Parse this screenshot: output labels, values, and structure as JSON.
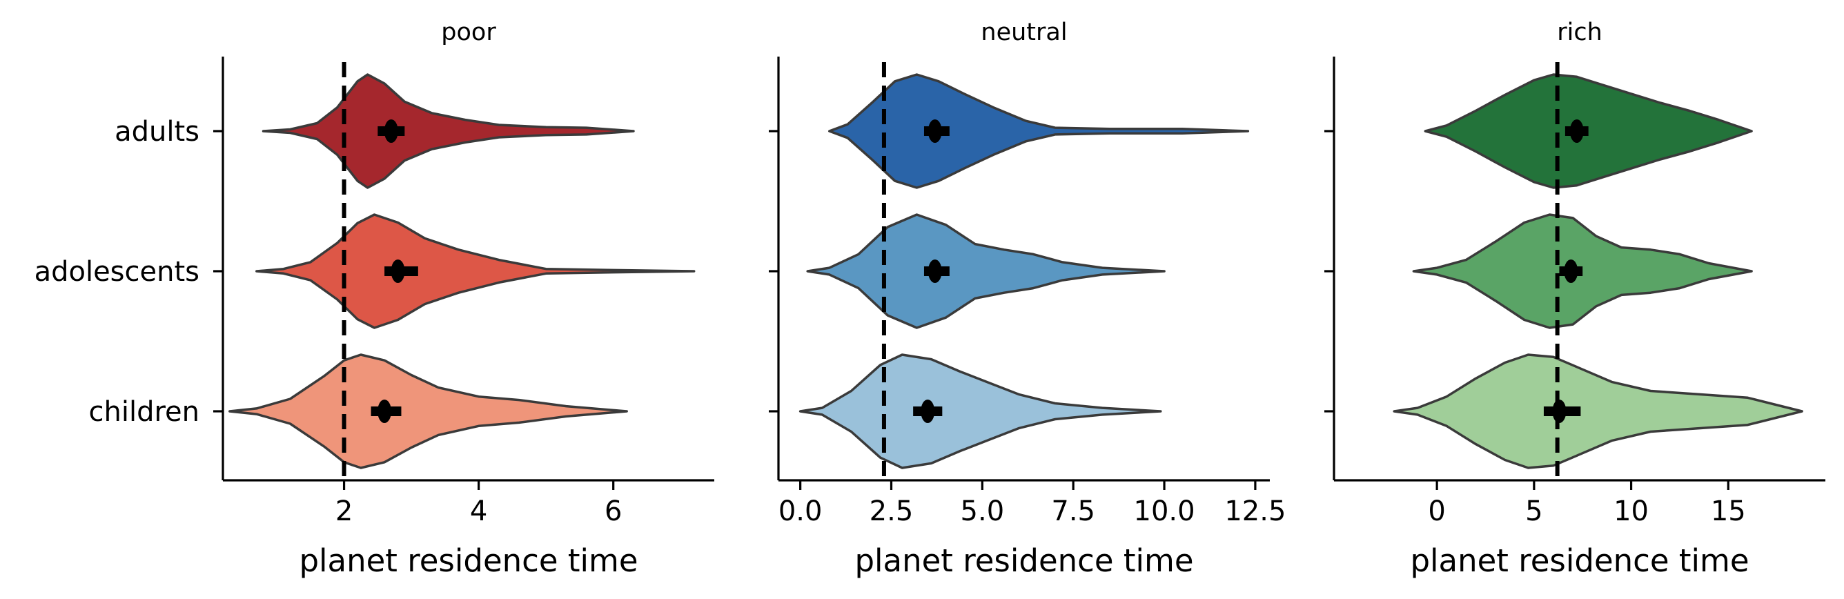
{
  "chart_data": [
    {
      "type": "violin",
      "title": "poor",
      "xlabel": "planet residence time",
      "ylabel": "",
      "xlim": [
        0.2,
        7.5
      ],
      "xticks": [
        2,
        4,
        6
      ],
      "xtick_labels": [
        "2",
        "4",
        "6"
      ],
      "categories": [
        "adults",
        "adolescents",
        "children"
      ],
      "ref_line_x": 2.0,
      "series": [
        {
          "category": "adults",
          "color": "#a5272d",
          "mean": 2.7,
          "ci": [
            2.5,
            2.9
          ],
          "range": [
            0.8,
            6.3
          ],
          "profile": [
            [
              0.8,
              0
            ],
            [
              1.2,
              0.03
            ],
            [
              1.6,
              0.14
            ],
            [
              1.9,
              0.42
            ],
            [
              2.2,
              0.88
            ],
            [
              2.35,
              1.0
            ],
            [
              2.6,
              0.84
            ],
            [
              2.9,
              0.52
            ],
            [
              3.3,
              0.32
            ],
            [
              3.8,
              0.2
            ],
            [
              4.3,
              0.11
            ],
            [
              5.0,
              0.07
            ],
            [
              5.6,
              0.06
            ],
            [
              6.3,
              0
            ]
          ]
        },
        {
          "category": "adolescents",
          "color": "#dd5747",
          "mean": 2.8,
          "ci": [
            2.6,
            3.1
          ],
          "range": [
            0.7,
            7.2
          ],
          "profile": [
            [
              0.7,
              0
            ],
            [
              1.1,
              0.04
            ],
            [
              1.5,
              0.16
            ],
            [
              1.9,
              0.5
            ],
            [
              2.2,
              0.85
            ],
            [
              2.45,
              1.0
            ],
            [
              2.8,
              0.86
            ],
            [
              3.2,
              0.58
            ],
            [
              3.7,
              0.38
            ],
            [
              4.3,
              0.2
            ],
            [
              5.0,
              0.04
            ],
            [
              6.0,
              0.02
            ],
            [
              7.2,
              0
            ]
          ]
        },
        {
          "category": "children",
          "color": "#ef957a",
          "mean": 2.6,
          "ci": [
            2.4,
            2.85
          ],
          "range": [
            0.3,
            6.2
          ],
          "profile": [
            [
              0.3,
              0
            ],
            [
              0.7,
              0.05
            ],
            [
              1.2,
              0.22
            ],
            [
              1.7,
              0.62
            ],
            [
              2.0,
              0.9
            ],
            [
              2.25,
              1.0
            ],
            [
              2.6,
              0.9
            ],
            [
              3.0,
              0.64
            ],
            [
              3.4,
              0.42
            ],
            [
              4.0,
              0.26
            ],
            [
              4.6,
              0.2
            ],
            [
              5.3,
              0.09
            ],
            [
              6.2,
              0
            ]
          ]
        }
      ]
    },
    {
      "type": "violin",
      "title": "neutral",
      "xlabel": "planet residence time",
      "ylabel": "",
      "xlim": [
        -0.6,
        12.9
      ],
      "xticks": [
        0.0,
        2.5,
        5.0,
        7.5,
        10.0,
        12.5
      ],
      "xtick_labels": [
        "0.0",
        "2.5",
        "5.0",
        "7.5",
        "10.0",
        "12.5"
      ],
      "categories": [
        "adults",
        "adolescents",
        "children"
      ],
      "ref_line_x": 2.3,
      "series": [
        {
          "category": "adults",
          "color": "#2a64a8",
          "mean": 3.7,
          "ci": [
            3.4,
            4.1
          ],
          "range": [
            0.8,
            12.3
          ],
          "profile": [
            [
              0.8,
              0
            ],
            [
              1.3,
              0.12
            ],
            [
              2.0,
              0.52
            ],
            [
              2.6,
              0.88
            ],
            [
              3.2,
              1.0
            ],
            [
              3.8,
              0.88
            ],
            [
              4.5,
              0.66
            ],
            [
              5.3,
              0.42
            ],
            [
              6.2,
              0.18
            ],
            [
              7.0,
              0.06
            ],
            [
              8.5,
              0.04
            ],
            [
              10.5,
              0.04
            ],
            [
              12.3,
              0
            ]
          ]
        },
        {
          "category": "adolescents",
          "color": "#5a97c2",
          "mean": 3.7,
          "ci": [
            3.4,
            4.1
          ],
          "range": [
            0.2,
            10.0
          ],
          "profile": [
            [
              0.2,
              0
            ],
            [
              0.8,
              0.06
            ],
            [
              1.6,
              0.3
            ],
            [
              2.4,
              0.78
            ],
            [
              3.2,
              1.0
            ],
            [
              4.0,
              0.82
            ],
            [
              4.8,
              0.48
            ],
            [
              5.6,
              0.38
            ],
            [
              6.4,
              0.3
            ],
            [
              7.2,
              0.16
            ],
            [
              8.3,
              0.06
            ],
            [
              10.0,
              0
            ]
          ]
        },
        {
          "category": "children",
          "color": "#9ac1da",
          "mean": 3.5,
          "ci": [
            3.1,
            3.9
          ],
          "range": [
            0.0,
            9.9
          ],
          "profile": [
            [
              0.0,
              0
            ],
            [
              0.6,
              0.06
            ],
            [
              1.4,
              0.36
            ],
            [
              2.2,
              0.82
            ],
            [
              2.8,
              1.0
            ],
            [
              3.6,
              0.92
            ],
            [
              4.4,
              0.7
            ],
            [
              5.2,
              0.5
            ],
            [
              6.0,
              0.3
            ],
            [
              7.0,
              0.14
            ],
            [
              8.3,
              0.06
            ],
            [
              9.9,
              0
            ]
          ]
        }
      ]
    },
    {
      "type": "violin",
      "title": "rich",
      "xlabel": "planet residence time",
      "ylabel": "",
      "xlim": [
        -5.3,
        20.0
      ],
      "xticks": [
        0,
        5,
        10,
        15
      ],
      "xtick_labels": [
        "0",
        "5",
        "10",
        "15"
      ],
      "categories": [
        "adults",
        "adolescents",
        "children"
      ],
      "ref_line_x": 6.2,
      "series": [
        {
          "category": "adults",
          "color": "#23733a",
          "mean": 7.2,
          "ci": [
            6.6,
            7.8
          ],
          "range": [
            -0.6,
            16.2
          ],
          "profile": [
            [
              -0.6,
              0
            ],
            [
              0.5,
              0.1
            ],
            [
              2.0,
              0.36
            ],
            [
              3.5,
              0.64
            ],
            [
              5.0,
              0.9
            ],
            [
              6.0,
              1.0
            ],
            [
              7.2,
              0.96
            ],
            [
              8.5,
              0.82
            ],
            [
              10.0,
              0.66
            ],
            [
              11.5,
              0.5
            ],
            [
              13.0,
              0.36
            ],
            [
              14.5,
              0.2
            ],
            [
              16.2,
              0
            ]
          ]
        },
        {
          "category": "adolescents",
          "color": "#5aa466",
          "mean": 6.9,
          "ci": [
            6.3,
            7.5
          ],
          "range": [
            -1.2,
            16.2
          ],
          "profile": [
            [
              -1.2,
              0
            ],
            [
              0.0,
              0.06
            ],
            [
              1.5,
              0.2
            ],
            [
              3.0,
              0.52
            ],
            [
              4.5,
              0.86
            ],
            [
              5.8,
              1.0
            ],
            [
              7.0,
              0.94
            ],
            [
              8.2,
              0.62
            ],
            [
              9.5,
              0.42
            ],
            [
              11.0,
              0.38
            ],
            [
              12.5,
              0.3
            ],
            [
              14.0,
              0.14
            ],
            [
              16.2,
              0
            ]
          ]
        },
        {
          "category": "children",
          "color": "#a0ce99",
          "mean": 6.3,
          "ci": [
            5.5,
            7.4
          ],
          "range": [
            -2.2,
            18.8
          ],
          "profile": [
            [
              -2.2,
              0
            ],
            [
              -1.0,
              0.06
            ],
            [
              0.5,
              0.26
            ],
            [
              2.0,
              0.58
            ],
            [
              3.5,
              0.86
            ],
            [
              4.7,
              1.0
            ],
            [
              6.0,
              0.96
            ],
            [
              7.5,
              0.74
            ],
            [
              9.0,
              0.52
            ],
            [
              11.0,
              0.36
            ],
            [
              13.5,
              0.3
            ],
            [
              16.0,
              0.24
            ],
            [
              18.8,
              0
            ]
          ]
        }
      ]
    }
  ]
}
